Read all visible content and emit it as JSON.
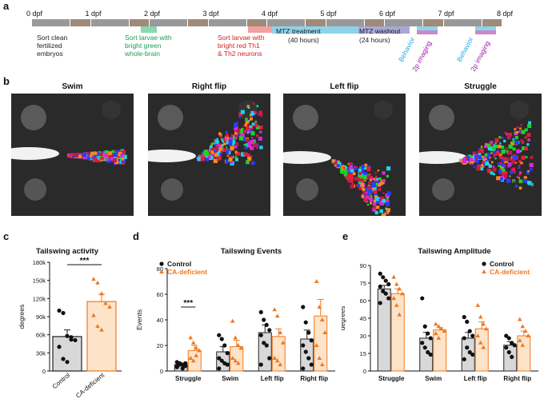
{
  "panel_labels": {
    "a": "a",
    "b": "b",
    "c": "c",
    "d": "d",
    "e": "e"
  },
  "timeline": {
    "days": [
      "0 dpf",
      "1 dpf",
      "2 dpf",
      "3 dpf",
      "4 dpf",
      "5 dpf",
      "6 dpf",
      "7 dpf",
      "8 dpf"
    ],
    "colors": {
      "day": "#999999",
      "night": "#a08a78",
      "green": "#88d8b0",
      "red": "#f2a0a0",
      "mtz": "#8fd3ea",
      "washout": "#a8a8d8",
      "behavior_bar": "#8fd3ea",
      "imaging_bar": "#cc88cc"
    },
    "notes": {
      "sort_clean": [
        "Sort clean",
        "fertilized",
        "embryos"
      ],
      "sort_green": [
        "Sort larvae with",
        "bright green",
        "whole-brain"
      ],
      "sort_red": [
        "Sort larvae with",
        "bright red Th1",
        "& Th2 neurons"
      ],
      "mtz": "MTZ treatment",
      "mtz_hours": "(40 hours)",
      "washout": "MTZ washout",
      "washout_hours": "(24 hours)",
      "behavior": "Behavior",
      "imaging": "2p imaging"
    },
    "note_colors": {
      "black": "#222222",
      "green": "#1a9e50",
      "red": "#d42020",
      "cyan": "#29a8d8",
      "purple": "#9a1aa8"
    }
  },
  "panel_b": {
    "titles": [
      "Swim",
      "Right flip",
      "Left flip",
      "Struggle"
    ]
  },
  "chart_data": [
    {
      "type": "bar",
      "title": "Tailswing activity",
      "ylabel": "degrees",
      "categories": [
        "Control",
        "CA-deficient"
      ],
      "values": [
        57000,
        115000
      ],
      "errors": [
        11000,
        12000
      ],
      "ylim": [
        0,
        180000
      ],
      "yticks": [
        "0",
        "30k",
        "60k",
        "90k",
        "120k",
        "150k",
        "180k"
      ],
      "significance": "***",
      "points": [
        [
          100000,
          96000,
          58000,
          52000,
          51000,
          40000,
          20000,
          15000,
          56000
        ],
        [
          152000,
          146000,
          128000,
          112000,
          106000,
          92000,
          74000,
          68000
        ]
      ],
      "colors": {
        "control": "#222222",
        "ca": "#f07820",
        "control_fill": "#d8d8d8",
        "ca_fill": "#fde3c8"
      }
    },
    {
      "type": "bar",
      "title": "Tailswing Events",
      "ylabel": "Events",
      "legend": [
        "Control",
        "CA-deficient"
      ],
      "categories": [
        "Struggle",
        "Swim",
        "Left flip",
        "Right flip"
      ],
      "series": [
        {
          "name": "Control",
          "values": [
            5,
            15,
            30,
            25
          ],
          "errors": [
            1,
            4,
            6,
            7
          ],
          "points": [
            [
              7,
              6,
              5,
              4,
              3,
              5,
              2,
              6,
              4
            ],
            [
              28,
              25,
              20,
              14,
              10,
              8,
              6,
              5,
              2
            ],
            [
              46,
              40,
              36,
              32,
              28,
              22,
              20,
              10,
              5
            ],
            [
              50,
              38,
              30,
              24,
              20,
              15,
              10,
              5,
              2
            ]
          ]
        },
        {
          "name": "CA-deficient",
          "values": [
            16,
            19,
            27,
            43
          ],
          "errors": [
            4,
            5,
            6,
            13
          ],
          "points": [
            [
              26,
              22,
              18,
              16,
              10,
              8,
              12
            ],
            [
              39,
              26,
              20,
              18,
              10,
              8,
              6
            ],
            [
              48,
              43,
              30,
              22,
              10,
              8,
              5
            ],
            [
              70,
              50,
              40,
              30,
              20,
              10,
              5
            ]
          ]
        }
      ],
      "ylim": [
        0,
        80
      ],
      "yticks": [
        "0",
        "20",
        "40",
        "60",
        "80"
      ],
      "significance": "***"
    },
    {
      "type": "bar",
      "title": "Tailswing Amplitude",
      "ylabel": "degrees",
      "legend": [
        "Control",
        "CA-deficient"
      ],
      "categories": [
        "Struggle",
        "Swim",
        "Left flip",
        "Right flip"
      ],
      "series": [
        {
          "name": "Control",
          "values": [
            70,
            28,
            28,
            22
          ],
          "errors": [
            3,
            5,
            5,
            3
          ],
          "points": [
            [
              83,
              80,
              77,
              74,
              72,
              68,
              66,
              62,
              58
            ],
            [
              62,
              38,
              32,
              28,
              24,
              20,
              16,
              14
            ],
            [
              46,
              42,
              34,
              30,
              28,
              20,
              16,
              14,
              10
            ],
            [
              30,
              28,
              24,
              22,
              20,
              16,
              12
            ]
          ]
        },
        {
          "name": "CA-deficient",
          "values": [
            66,
            35,
            36,
            30
          ],
          "errors": [
            4,
            2,
            6,
            4
          ],
          "points": [
            [
              80,
              74,
              70,
              66,
              62,
              56,
              48
            ],
            [
              40,
              38,
              36,
              34,
              32,
              28
            ],
            [
              56,
              46,
              40,
              36,
              30,
              24,
              20
            ],
            [
              44,
              38,
              34,
              30,
              26,
              22
            ]
          ]
        }
      ],
      "ylim": [
        0,
        90
      ],
      "yticks": [
        "0",
        "15",
        "30",
        "45",
        "60",
        "75",
        "90"
      ]
    }
  ]
}
